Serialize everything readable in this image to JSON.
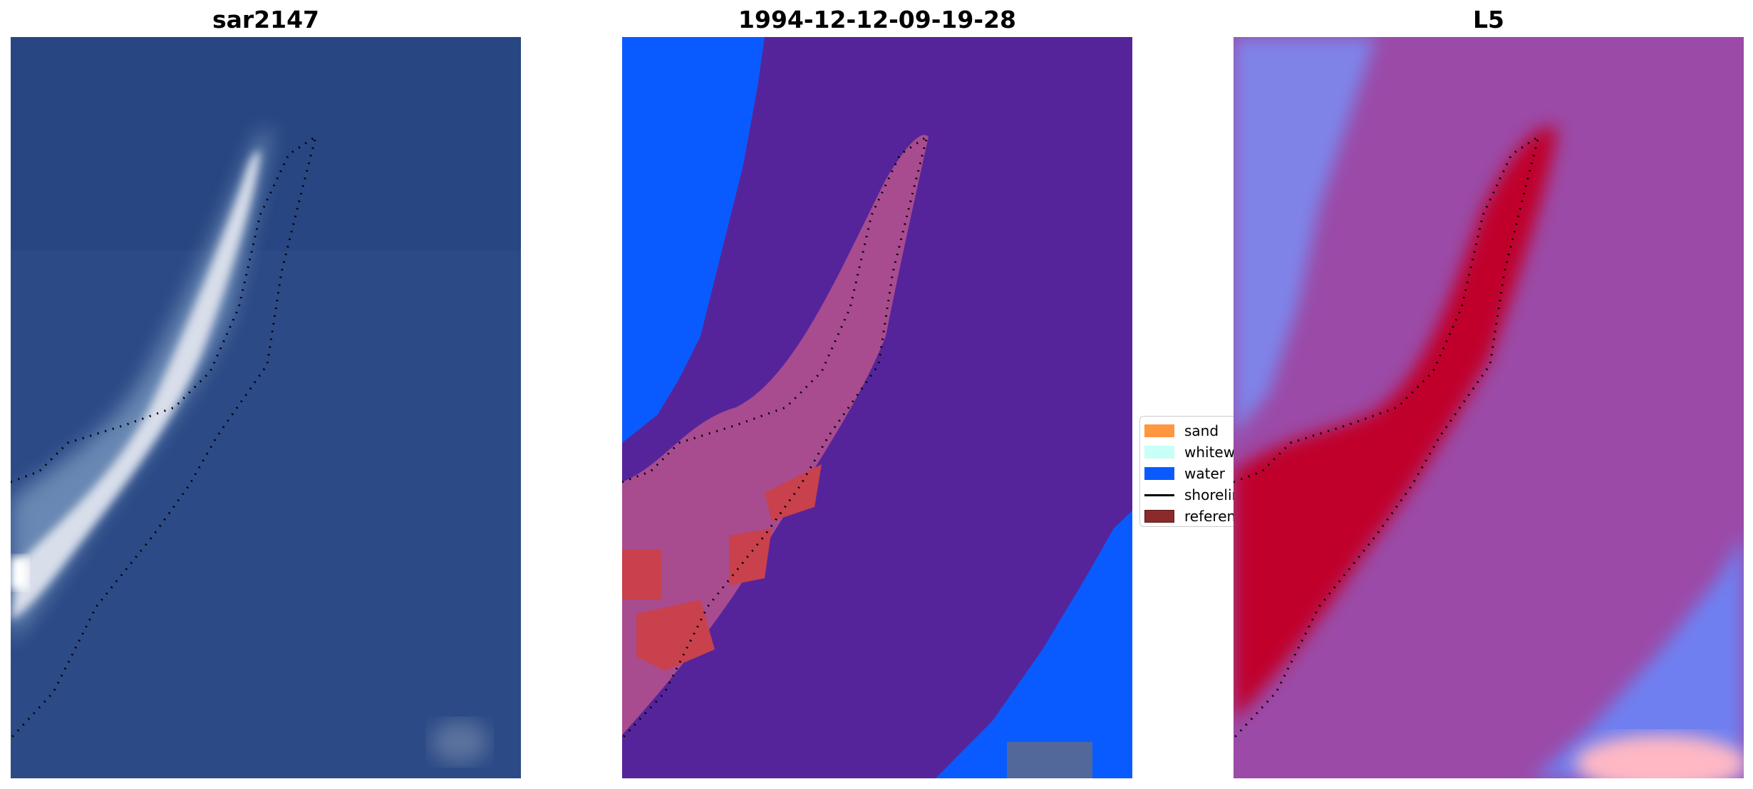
{
  "panels": [
    {
      "title": "sar2147"
    },
    {
      "title": "1994-12-12-09-19-28"
    },
    {
      "title": "L5"
    }
  ],
  "legend": {
    "items": [
      {
        "label": "sand",
        "color": "#ff9640"
      },
      {
        "label": "whitewater",
        "color": "#c8fff6"
      },
      {
        "label": "water",
        "color": "#0a5bff"
      },
      {
        "label": "shoreline",
        "color": "#000000"
      },
      {
        "label": "reference",
        "color": "#8b2a2a"
      }
    ]
  },
  "colors": {
    "sea_true_color": "#2a4a88",
    "classified_background": "#56249a",
    "index_background": "#9b4aa8",
    "index_high": "#c0002a",
    "index_low": "#2a2aff"
  }
}
